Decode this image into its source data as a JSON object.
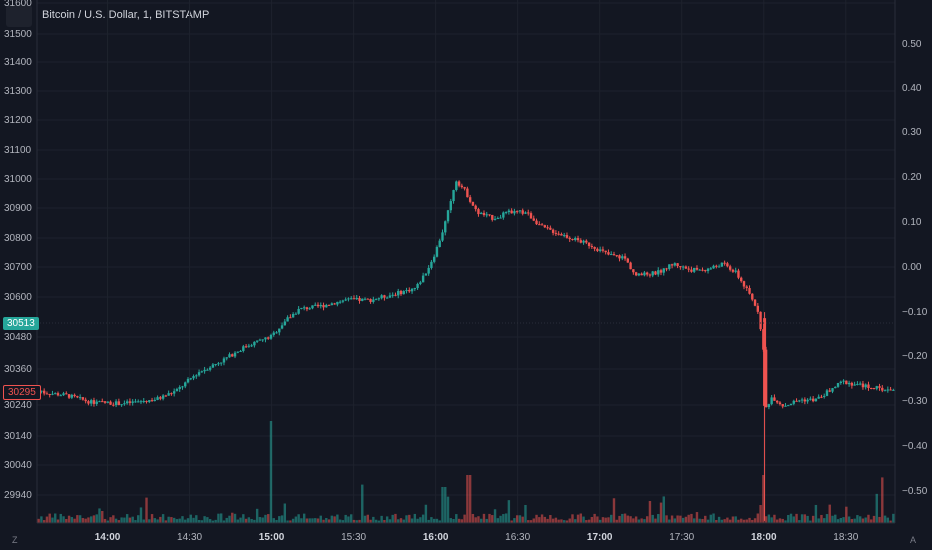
{
  "header": {
    "title": "Bitcoin / U.S. Dollar, 1, BITSTAMP"
  },
  "price_tags": {
    "current": "30513",
    "reference": "30295"
  },
  "corner_buttons": {
    "log_label": "Z",
    "auto_label": "A"
  },
  "colors": {
    "up": "#26a69a",
    "down": "#ef5350",
    "background": "#131722",
    "grid": "#1e222d"
  },
  "chart_data": {
    "type": "candlestick",
    "title": "Bitcoin / U.S. Dollar, 1, BITSTAMP",
    "left_axis_ticks": [
      "31600",
      "31500",
      "31400",
      "31300",
      "31200",
      "31100",
      "31000",
      "30900",
      "30800",
      "30700",
      "30600",
      "30480",
      "30360",
      "30240",
      "30140",
      "30040",
      "29940"
    ],
    "right_axis_ticks": [
      "0.50",
      "0.40",
      "0.30",
      "0.20",
      "0.10",
      "0.00",
      "−0.10",
      "−0.20",
      "−0.30",
      "−0.40",
      "−0.50"
    ],
    "x_axis_ticks": [
      {
        "label": "14:00",
        "bold": true
      },
      {
        "label": "14:30",
        "bold": false
      },
      {
        "label": "15:00",
        "bold": true
      },
      {
        "label": "15:30",
        "bold": false
      },
      {
        "label": "16:00",
        "bold": true
      },
      {
        "label": "16:30",
        "bold": false
      },
      {
        "label": "17:00",
        "bold": true
      },
      {
        "label": "17:30",
        "bold": false
      },
      {
        "label": "18:00",
        "bold": true
      },
      {
        "label": "18:30",
        "bold": false
      }
    ],
    "x_range_minutes": [
      13.57,
      18.8
    ],
    "price_path": [
      [
        13.6,
        30295
      ],
      [
        13.75,
        30285
      ],
      [
        13.9,
        30262
      ],
      [
        14.1,
        30258
      ],
      [
        14.3,
        30272
      ],
      [
        14.42,
        30300
      ],
      [
        14.55,
        30360
      ],
      [
        14.7,
        30400
      ],
      [
        14.85,
        30450
      ],
      [
        15.0,
        30480
      ],
      [
        15.08,
        30530
      ],
      [
        15.17,
        30570
      ],
      [
        15.3,
        30580
      ],
      [
        15.45,
        30600
      ],
      [
        15.6,
        30600
      ],
      [
        15.75,
        30620
      ],
      [
        15.88,
        30640
      ],
      [
        15.95,
        30700
      ],
      [
        16.0,
        30760
      ],
      [
        16.05,
        30840
      ],
      [
        16.1,
        30940
      ],
      [
        16.12,
        31000
      ],
      [
        16.18,
        30960
      ],
      [
        16.25,
        30890
      ],
      [
        16.35,
        30870
      ],
      [
        16.45,
        30890
      ],
      [
        16.55,
        30890
      ],
      [
        16.65,
        30840
      ],
      [
        16.8,
        30810
      ],
      [
        16.95,
        30780
      ],
      [
        17.05,
        30750
      ],
      [
        17.15,
        30740
      ],
      [
        17.22,
        30680
      ],
      [
        17.35,
        30690
      ],
      [
        17.45,
        30720
      ],
      [
        17.55,
        30700
      ],
      [
        17.65,
        30700
      ],
      [
        17.75,
        30720
      ],
      [
        17.83,
        30690
      ],
      [
        17.9,
        30630
      ],
      [
        17.97,
        30560
      ],
      [
        18.0,
        30420
      ],
      [
        18.01,
        30240
      ],
      [
        18.05,
        30280
      ],
      [
        18.12,
        30250
      ],
      [
        18.22,
        30270
      ],
      [
        18.32,
        30270
      ],
      [
        18.4,
        30300
      ],
      [
        18.48,
        30330
      ],
      [
        18.57,
        30320
      ],
      [
        18.68,
        30310
      ],
      [
        18.78,
        30300
      ]
    ],
    "volume_spikes": [
      [
        15.0,
        0.85
      ],
      [
        18.0,
        0.4
      ],
      [
        18.72,
        0.38
      ],
      [
        16.2,
        0.4
      ],
      [
        15.55,
        0.32
      ],
      [
        16.05,
        0.3
      ]
    ],
    "grid": true,
    "legend": "none"
  }
}
